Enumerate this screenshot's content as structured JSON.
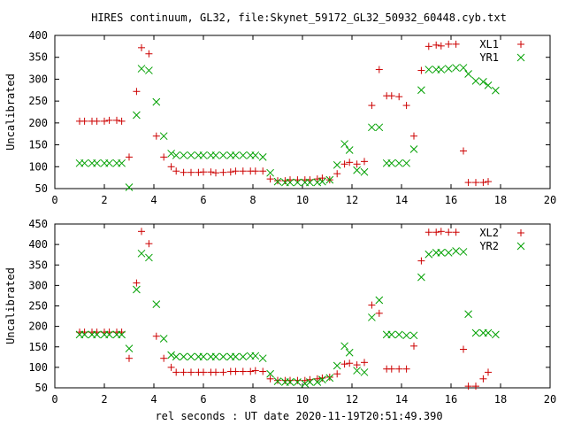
{
  "title": "HIRES continuum, GL32, file:Skynet_59172_GL32_50932_60448.cyb.txt",
  "xlabel": "rel seconds : UT date 2020-11-19T20:51:49.390",
  "colors": {
    "red": "#cc0000",
    "green": "#00a000"
  },
  "chart_data": [
    {
      "type": "scatter",
      "ylabel": "Uncalibrated",
      "xlim": [
        0,
        20
      ],
      "ylim": [
        50,
        400
      ],
      "xticks": [
        0,
        2,
        4,
        6,
        8,
        10,
        12,
        14,
        16,
        18,
        20
      ],
      "yticks": [
        50,
        100,
        150,
        200,
        250,
        300,
        350,
        400
      ],
      "legend_position": "top-right",
      "series": [
        {
          "name": "XL1",
          "marker": "plus",
          "color": "#cc0000",
          "points": [
            [
              1.0,
              204
            ],
            [
              1.2,
              204
            ],
            [
              1.5,
              204
            ],
            [
              1.7,
              204
            ],
            [
              2.0,
              204
            ],
            [
              2.2,
              206
            ],
            [
              2.5,
              206
            ],
            [
              2.7,
              204
            ],
            [
              3.0,
              122
            ],
            [
              3.3,
              272
            ],
            [
              3.5,
              372
            ],
            [
              3.8,
              358
            ],
            [
              4.1,
              170
            ],
            [
              4.4,
              122
            ],
            [
              4.7,
              100
            ],
            [
              4.9,
              90
            ],
            [
              5.2,
              87
            ],
            [
              5.5,
              87
            ],
            [
              5.8,
              87
            ],
            [
              6.0,
              88
            ],
            [
              6.3,
              88
            ],
            [
              6.5,
              86
            ],
            [
              6.8,
              87
            ],
            [
              7.1,
              88
            ],
            [
              7.3,
              90
            ],
            [
              7.6,
              90
            ],
            [
              7.9,
              90
            ],
            [
              8.1,
              90
            ],
            [
              8.4,
              90
            ],
            [
              8.7,
              72
            ],
            [
              9.0,
              68
            ],
            [
              9.3,
              68
            ],
            [
              9.5,
              70
            ],
            [
              9.8,
              70
            ],
            [
              10.1,
              70
            ],
            [
              10.3,
              70
            ],
            [
              10.6,
              72
            ],
            [
              10.8,
              74
            ],
            [
              11.1,
              70
            ],
            [
              11.4,
              84
            ],
            [
              11.7,
              106
            ],
            [
              11.9,
              110
            ],
            [
              12.2,
              106
            ],
            [
              12.5,
              112
            ],
            [
              12.8,
              240
            ],
            [
              13.1,
              322
            ],
            [
              13.4,
              262
            ],
            [
              13.6,
              262
            ],
            [
              13.9,
              260
            ],
            [
              14.2,
              240
            ],
            [
              14.5,
              170
            ],
            [
              14.8,
              320
            ],
            [
              15.1,
              375
            ],
            [
              15.4,
              378
            ],
            [
              15.6,
              376
            ],
            [
              15.9,
              380
            ],
            [
              16.2,
              380
            ],
            [
              16.5,
              136
            ],
            [
              16.7,
              64
            ],
            [
              17.0,
              64
            ],
            [
              17.3,
              64
            ],
            [
              17.5,
              66
            ]
          ]
        },
        {
          "name": "YR1",
          "marker": "cross",
          "color": "#00a000",
          "points": [
            [
              1.0,
              108
            ],
            [
              1.2,
              108
            ],
            [
              1.5,
              108
            ],
            [
              1.7,
              108
            ],
            [
              2.0,
              108
            ],
            [
              2.2,
              108
            ],
            [
              2.5,
              108
            ],
            [
              2.7,
              108
            ],
            [
              3.0,
              53
            ],
            [
              3.3,
              218
            ],
            [
              3.5,
              324
            ],
            [
              3.8,
              320
            ],
            [
              4.1,
              248
            ],
            [
              4.4,
              170
            ],
            [
              4.7,
              130
            ],
            [
              4.9,
              126
            ],
            [
              5.2,
              126
            ],
            [
              5.5,
              126
            ],
            [
              5.8,
              126
            ],
            [
              6.0,
              126
            ],
            [
              6.3,
              126
            ],
            [
              6.5,
              126
            ],
            [
              6.8,
              126
            ],
            [
              7.1,
              126
            ],
            [
              7.3,
              126
            ],
            [
              7.6,
              126
            ],
            [
              7.9,
              126
            ],
            [
              8.1,
              126
            ],
            [
              8.4,
              122
            ],
            [
              8.7,
              86
            ],
            [
              9.0,
              66
            ],
            [
              9.3,
              64
            ],
            [
              9.5,
              64
            ],
            [
              9.8,
              64
            ],
            [
              10.1,
              64
            ],
            [
              10.3,
              64
            ],
            [
              10.6,
              64
            ],
            [
              10.8,
              66
            ],
            [
              11.1,
              70
            ],
            [
              11.4,
              104
            ],
            [
              11.7,
              152
            ],
            [
              11.9,
              138
            ],
            [
              12.2,
              92
            ],
            [
              12.5,
              88
            ],
            [
              12.8,
              190
            ],
            [
              13.1,
              190
            ],
            [
              13.4,
              108
            ],
            [
              13.6,
              108
            ],
            [
              13.9,
              108
            ],
            [
              14.2,
              108
            ],
            [
              14.5,
              140
            ],
            [
              14.8,
              275
            ],
            [
              15.1,
              322
            ],
            [
              15.4,
              322
            ],
            [
              15.6,
              322
            ],
            [
              15.9,
              324
            ],
            [
              16.2,
              326
            ],
            [
              16.5,
              326
            ],
            [
              16.7,
              312
            ],
            [
              17.0,
              296
            ],
            [
              17.3,
              294
            ],
            [
              17.5,
              286
            ],
            [
              17.8,
              274
            ]
          ]
        }
      ]
    },
    {
      "type": "scatter",
      "ylabel": "Uncalibrated",
      "xlim": [
        0,
        20
      ],
      "ylim": [
        50,
        450
      ],
      "xticks": [
        0,
        2,
        4,
        6,
        8,
        10,
        12,
        14,
        16,
        18,
        20
      ],
      "yticks": [
        50,
        100,
        150,
        200,
        250,
        300,
        350,
        400,
        450
      ],
      "legend_position": "top-right",
      "series": [
        {
          "name": "XL2",
          "marker": "plus",
          "color": "#cc0000",
          "points": [
            [
              1.0,
              186
            ],
            [
              1.2,
              186
            ],
            [
              1.5,
              186
            ],
            [
              1.7,
              186
            ],
            [
              2.0,
              186
            ],
            [
              2.2,
              186
            ],
            [
              2.5,
              186
            ],
            [
              2.7,
              186
            ],
            [
              3.0,
              122
            ],
            [
              3.3,
              306
            ],
            [
              3.5,
              432
            ],
            [
              3.8,
              402
            ],
            [
              4.1,
              176
            ],
            [
              4.4,
              122
            ],
            [
              4.7,
              100
            ],
            [
              4.9,
              88
            ],
            [
              5.2,
              88
            ],
            [
              5.5,
              88
            ],
            [
              5.8,
              88
            ],
            [
              6.0,
              88
            ],
            [
              6.3,
              88
            ],
            [
              6.5,
              88
            ],
            [
              6.8,
              88
            ],
            [
              7.1,
              90
            ],
            [
              7.3,
              90
            ],
            [
              7.6,
              90
            ],
            [
              7.9,
              90
            ],
            [
              8.1,
              92
            ],
            [
              8.4,
              90
            ],
            [
              8.7,
              72
            ],
            [
              9.0,
              68
            ],
            [
              9.3,
              68
            ],
            [
              9.5,
              68
            ],
            [
              9.8,
              68
            ],
            [
              10.1,
              68
            ],
            [
              10.3,
              70
            ],
            [
              10.6,
              72
            ],
            [
              10.8,
              74
            ],
            [
              11.1,
              76
            ],
            [
              11.4,
              84
            ],
            [
              11.7,
              108
            ],
            [
              11.9,
              110
            ],
            [
              12.2,
              106
            ],
            [
              12.5,
              112
            ],
            [
              12.8,
              252
            ],
            [
              13.1,
              232
            ],
            [
              13.4,
              96
            ],
            [
              13.6,
              96
            ],
            [
              13.9,
              96
            ],
            [
              14.2,
              96
            ],
            [
              14.5,
              152
            ],
            [
              14.8,
              360
            ],
            [
              15.1,
              430
            ],
            [
              15.4,
              430
            ],
            [
              15.6,
              432
            ],
            [
              15.9,
              430
            ],
            [
              16.2,
              430
            ],
            [
              16.5,
              144
            ],
            [
              16.7,
              54
            ],
            [
              17.0,
              54
            ],
            [
              17.3,
              72
            ],
            [
              17.5,
              88
            ]
          ]
        },
        {
          "name": "YR2",
          "marker": "cross",
          "color": "#00a000",
          "points": [
            [
              1.0,
              180
            ],
            [
              1.2,
              180
            ],
            [
              1.5,
              180
            ],
            [
              1.7,
              180
            ],
            [
              2.0,
              180
            ],
            [
              2.2,
              180
            ],
            [
              2.5,
              180
            ],
            [
              2.7,
              180
            ],
            [
              3.0,
              146
            ],
            [
              3.3,
              290
            ],
            [
              3.5,
              378
            ],
            [
              3.8,
              368
            ],
            [
              4.1,
              254
            ],
            [
              4.4,
              170
            ],
            [
              4.7,
              130
            ],
            [
              4.9,
              126
            ],
            [
              5.2,
              126
            ],
            [
              5.5,
              126
            ],
            [
              5.8,
              126
            ],
            [
              6.0,
              126
            ],
            [
              6.3,
              126
            ],
            [
              6.5,
              126
            ],
            [
              6.8,
              126
            ],
            [
              7.1,
              126
            ],
            [
              7.3,
              126
            ],
            [
              7.6,
              126
            ],
            [
              7.9,
              128
            ],
            [
              8.1,
              128
            ],
            [
              8.4,
              122
            ],
            [
              8.7,
              84
            ],
            [
              9.0,
              66
            ],
            [
              9.3,
              64
            ],
            [
              9.5,
              64
            ],
            [
              9.8,
              64
            ],
            [
              10.1,
              60
            ],
            [
              10.3,
              64
            ],
            [
              10.6,
              64
            ],
            [
              10.8,
              70
            ],
            [
              11.1,
              74
            ],
            [
              11.4,
              104
            ],
            [
              11.7,
              152
            ],
            [
              11.9,
              136
            ],
            [
              12.2,
              92
            ],
            [
              12.5,
              88
            ],
            [
              12.8,
              222
            ],
            [
              13.1,
              264
            ],
            [
              13.4,
              180
            ],
            [
              13.6,
              180
            ],
            [
              13.9,
              180
            ],
            [
              14.2,
              178
            ],
            [
              14.5,
              178
            ],
            [
              14.8,
              320
            ],
            [
              15.1,
              376
            ],
            [
              15.4,
              380
            ],
            [
              15.6,
              380
            ],
            [
              15.9,
              380
            ],
            [
              16.2,
              384
            ],
            [
              16.5,
              382
            ],
            [
              16.7,
              230
            ],
            [
              17.0,
              184
            ],
            [
              17.3,
              184
            ],
            [
              17.5,
              184
            ],
            [
              17.8,
              180
            ]
          ]
        }
      ]
    }
  ]
}
